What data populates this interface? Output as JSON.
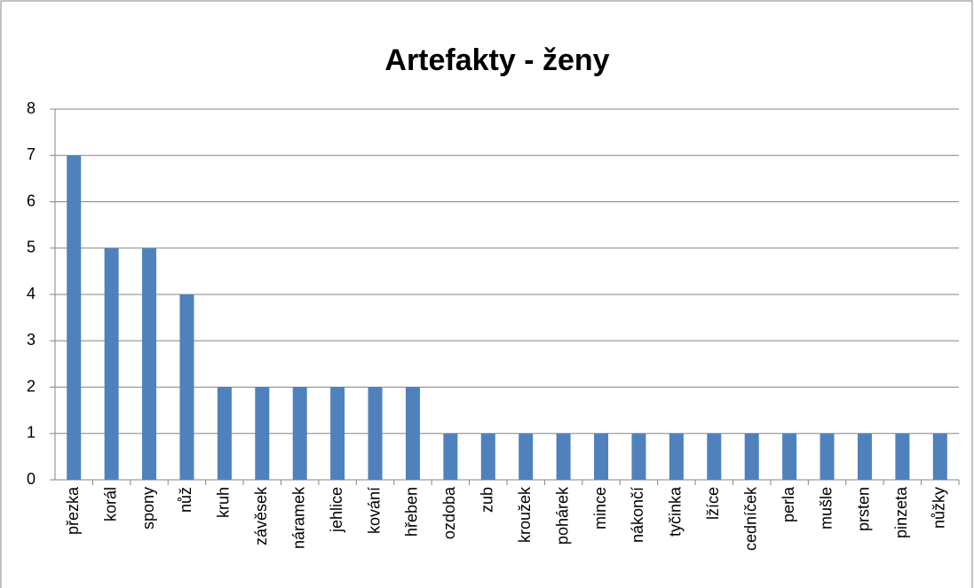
{
  "chart_data": {
    "type": "bar",
    "title": "Artefakty - ženy",
    "categories": [
      "přezka",
      "korál",
      "spony",
      "nůž",
      "kruh",
      "závěsek",
      "náramek",
      "jehlice",
      "kování",
      "hřeben",
      "ozdoba",
      "zub",
      "kroužek",
      "pohárek",
      "mince",
      "nákončí",
      "tyčinka",
      "lžíce",
      "cedníček",
      "perla",
      "mušle",
      "prsten",
      "pinzeta",
      "nůžky"
    ],
    "values": [
      7,
      5,
      5,
      4,
      2,
      2,
      2,
      2,
      2,
      2,
      1,
      1,
      1,
      1,
      1,
      1,
      1,
      1,
      1,
      1,
      1,
      1,
      1,
      1
    ],
    "color": "#4f81bd",
    "ylim": [
      0,
      8
    ],
    "yticks": [
      0,
      1,
      2,
      3,
      4,
      5,
      6,
      7,
      8
    ],
    "grid": true
  }
}
